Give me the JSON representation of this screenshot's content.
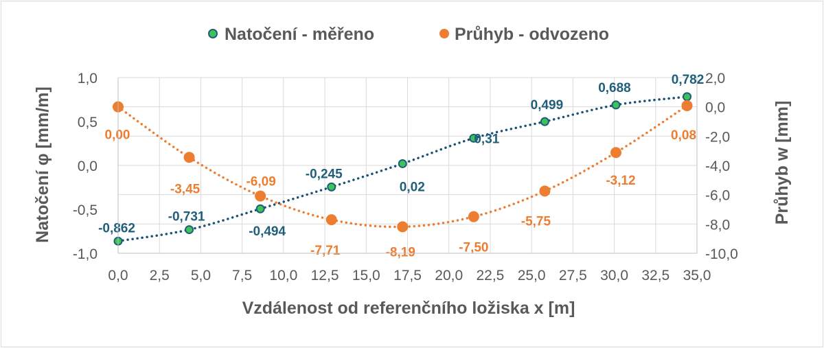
{
  "chart_data": {
    "type": "scatter",
    "xlabel": "Vzdálenost od referenčního ložiska x [m]",
    "ylabel_left": "Natočení φ [mm/m]",
    "ylabel_right": "Průhyb w [mm]",
    "xlim": [
      0,
      35
    ],
    "ylim_left": [
      -1.0,
      1.0
    ],
    "ylim_right": [
      -10.0,
      2.0
    ],
    "grid": true,
    "legend_position": "top",
    "x_ticks": [
      "0,0",
      "2,5",
      "5,0",
      "7,5",
      "10,0",
      "12,5",
      "15,0",
      "17,5",
      "20,0",
      "22,5",
      "25,0",
      "27,5",
      "30,0",
      "32,5",
      "35,0"
    ],
    "y_left_ticks": [
      "1,0",
      "0,5",
      "0,0",
      "-0,5",
      "-1,0"
    ],
    "y_right_ticks": [
      "2,0",
      "0,0",
      "-2,0",
      "-4,0",
      "-6,0",
      "-8,0",
      "-10,0"
    ],
    "series": [
      {
        "name": "Natočení - měřeno",
        "axis": "left",
        "marker_color": "#3cc45a",
        "line_color": "#1a5276",
        "label_color": "#1f5f7a",
        "x": [
          0,
          4.3,
          8.6,
          12.9,
          17.2,
          21.5,
          25.8,
          30.1,
          34.4
        ],
        "values": [
          -0.862,
          -0.731,
          -0.494,
          -0.245,
          0.02,
          0.31,
          0.499,
          0.688,
          0.782
        ],
        "labels": [
          "-0,862",
          "-0,731",
          "-0,494",
          "-0,245",
          "0,02",
          "0,31",
          "0,499",
          "0,688",
          "0,782"
        ]
      },
      {
        "name": "Průhyb - odvozeno",
        "axis": "right",
        "marker_color": "#ed7d31",
        "line_color": "#ed7d31",
        "label_color": "#ed7d31",
        "x": [
          0,
          4.3,
          8.6,
          12.9,
          17.2,
          21.5,
          25.8,
          30.1,
          34.4
        ],
        "values": [
          0.0,
          -3.45,
          -6.09,
          -7.71,
          -8.19,
          -7.5,
          -5.75,
          -3.12,
          0.08
        ],
        "labels": [
          "0,00",
          "-3,45",
          "-6,09",
          "-7,71",
          "-8,19",
          "-7,50",
          "-5,75",
          "-3,12",
          "0,08"
        ]
      }
    ]
  }
}
